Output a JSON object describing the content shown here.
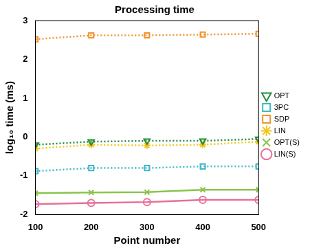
{
  "chart_data": {
    "type": "line",
    "title": "Processing time",
    "x_label": "Point number",
    "y_label": "log₁₀ time (ms)",
    "x": [
      100,
      200,
      300,
      400,
      500
    ],
    "xlim": [
      100,
      500
    ],
    "xticks": [
      100,
      200,
      300,
      400,
      500
    ],
    "ylim": [
      -2,
      3
    ],
    "yticks": [
      -2,
      -1,
      0,
      1,
      2,
      3
    ],
    "grid": false,
    "legend": "right",
    "series": [
      {
        "name": "OPT",
        "color": "#1e8c3a",
        "marker": "triangle_down",
        "line_style": "dotted",
        "values": [
          -0.2,
          -0.12,
          -0.1,
          -0.1,
          -0.05
        ]
      },
      {
        "name": "3PC",
        "color": "#3cb8c8",
        "marker": "square",
        "line_style": "dotted",
        "values": [
          -0.88,
          -0.8,
          -0.8,
          -0.76,
          -0.76
        ]
      },
      {
        "name": "SDP",
        "color": "#f0922b",
        "marker": "square",
        "line_style": "dotted",
        "values": [
          2.52,
          2.62,
          2.62,
          2.64,
          2.66
        ]
      },
      {
        "name": "LIN",
        "color": "#f5c518",
        "marker": "star",
        "line_style": "dotted",
        "values": [
          -0.3,
          -0.2,
          -0.22,
          -0.2,
          -0.12
        ]
      },
      {
        "name": "OPT(S)",
        "color": "#8bc34a",
        "marker": "x",
        "line_style": "solid",
        "values": [
          -1.45,
          -1.43,
          -1.42,
          -1.36,
          -1.36
        ]
      },
      {
        "name": "LIN(S)",
        "color": "#e8709a",
        "marker": "circle",
        "line_style": "solid",
        "values": [
          -1.73,
          -1.7,
          -1.68,
          -1.62,
          -1.62
        ]
      }
    ]
  }
}
